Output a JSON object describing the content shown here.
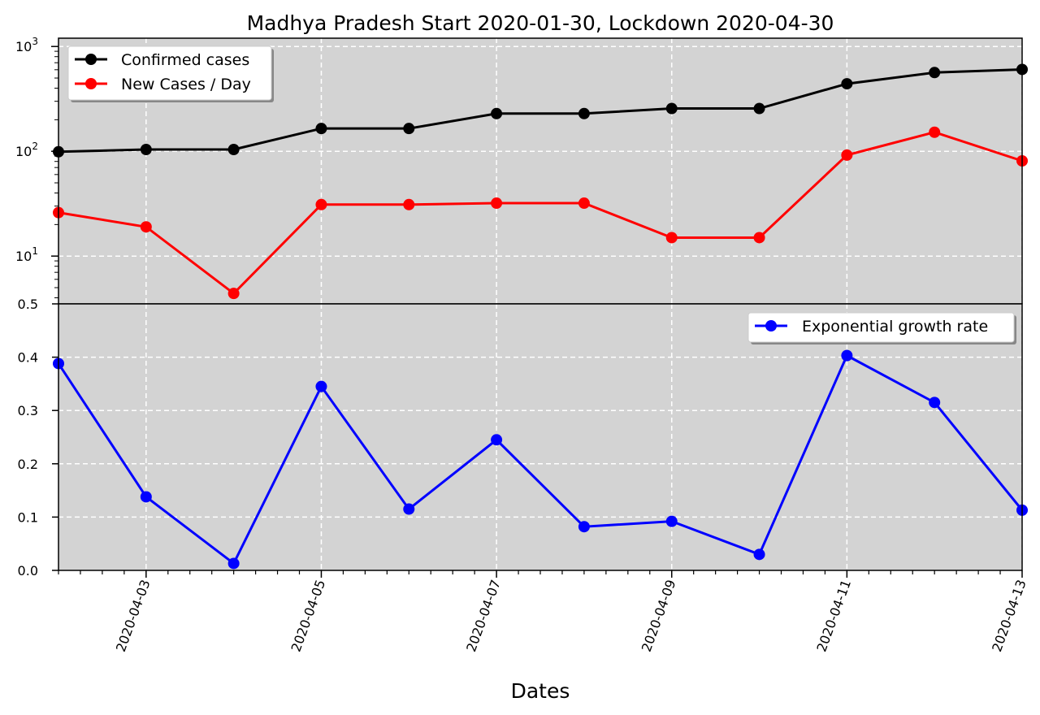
{
  "chart_data": [
    {
      "type": "line",
      "title": "Madhya Pradesh Start 2020-01-30, Lockdown 2020-04-30",
      "xlabel": "",
      "ylabel": "",
      "yscale": "log",
      "ylim": [
        3.5,
        1200
      ],
      "y_tick_labels": [
        {
          "base": "10",
          "exp": "1"
        },
        {
          "base": "10",
          "exp": "2"
        },
        {
          "base": "10",
          "exp": "3"
        }
      ],
      "grid": true,
      "legend_position": "top-left",
      "x": [
        "2020-04-02",
        "2020-04-03",
        "2020-04-04",
        "2020-04-05",
        "2020-04-06",
        "2020-04-07",
        "2020-04-08",
        "2020-04-09",
        "2020-04-10",
        "2020-04-11",
        "2020-04-12",
        "2020-04-13"
      ],
      "series": [
        {
          "name": "Confirmed cases",
          "color": "#000000",
          "values": [
            99,
            104,
            104,
            165,
            165,
            229,
            229,
            256,
            256,
            441,
            564,
            604
          ]
        },
        {
          "name": "New Cases / Day",
          "color": "#ff0000",
          "values": [
            26,
            19,
            4.4,
            31,
            31,
            32,
            32,
            15,
            15,
            92,
            152,
            81
          ]
        }
      ]
    },
    {
      "type": "line",
      "xlabel": "Dates",
      "ylabel": "",
      "ylim": [
        0.0,
        0.5
      ],
      "y_ticks": [
        "0.0",
        "0.1",
        "0.2",
        "0.3",
        "0.4",
        "0.5"
      ],
      "x_tick_labels": [
        "2020-04-03",
        "2020-04-05",
        "2020-04-07",
        "2020-04-09",
        "2020-04-11",
        "2020-04-13"
      ],
      "grid": true,
      "legend_position": "top-right",
      "x": [
        "2020-04-02",
        "2020-04-03",
        "2020-04-04",
        "2020-04-05",
        "2020-04-06",
        "2020-04-07",
        "2020-04-08",
        "2020-04-09",
        "2020-04-10",
        "2020-04-11",
        "2020-04-12",
        "2020-04-13"
      ],
      "series": [
        {
          "name": "Exponential growth rate",
          "color": "#0000ff",
          "values": [
            0.388,
            0.138,
            0.013,
            0.345,
            0.115,
            0.245,
            0.082,
            0.092,
            0.03,
            0.403,
            0.315,
            0.113
          ]
        }
      ]
    }
  ],
  "colors": {
    "plot_background": "#d3d3d3",
    "grid": "#ffffff"
  }
}
